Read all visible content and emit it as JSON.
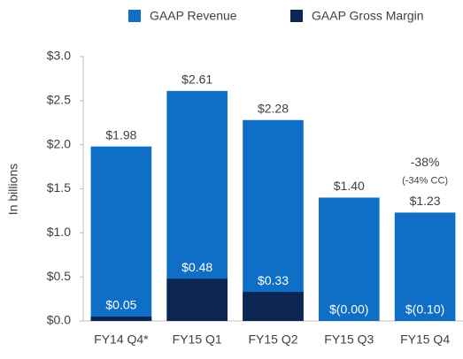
{
  "chart_data": {
    "type": "bar",
    "y_label": "In billions",
    "categories": [
      "FY14 Q4*",
      "FY15 Q1",
      "FY15 Q2",
      "FY15 Q3",
      "FY15 Q4"
    ],
    "series": [
      {
        "name": "GAAP Revenue",
        "color": "#0f6fc6",
        "values": [
          1.98,
          2.61,
          2.28,
          1.4,
          1.23
        ],
        "value_labels": [
          "$1.98",
          "$2.61",
          "$2.28",
          "$1.40",
          "$1.23"
        ]
      },
      {
        "name": "GAAP Gross Margin",
        "color": "#0c2653",
        "values": [
          0.05,
          0.48,
          0.33,
          0.0,
          -0.1
        ],
        "value_labels": [
          "$0.05",
          "$0.48",
          "$0.33",
          "$(0.00)",
          "$(0.10)"
        ]
      }
    ],
    "annotations": [
      "-38%",
      "(-34% CC)"
    ],
    "ylim": [
      0,
      3
    ],
    "yticks": [
      {
        "value": 0,
        "label": "$0.0"
      },
      {
        "value": 0.5,
        "label": "$0.5"
      },
      {
        "value": 1,
        "label": "$1.0"
      },
      {
        "value": 1.5,
        "label": "$1.5"
      },
      {
        "value": 2,
        "label": "$2.0"
      },
      {
        "value": 2.5,
        "label": "$2.5"
      },
      {
        "value": 3,
        "label": "$3.0"
      }
    ],
    "grid": false
  }
}
